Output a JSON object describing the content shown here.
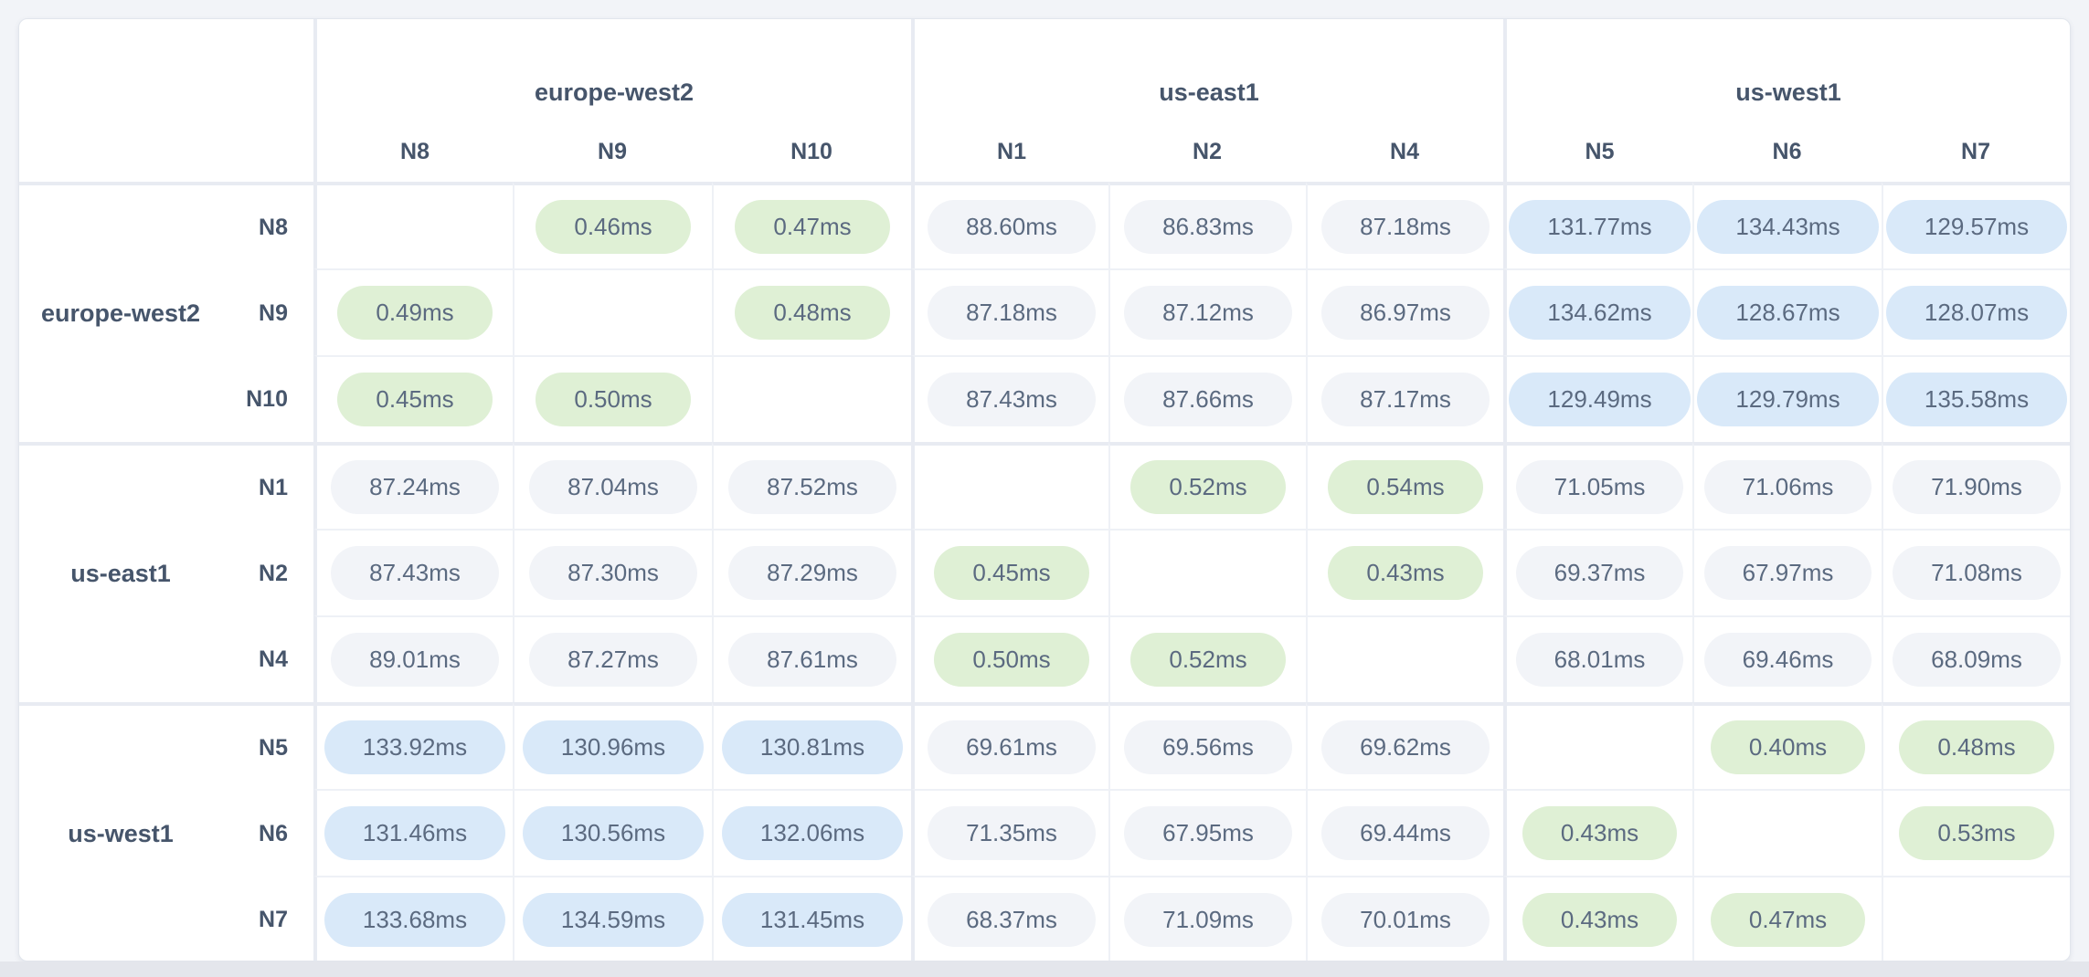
{
  "colors": {
    "page_bg": "#f2f4f8",
    "strip_bg": "#e4e6ec",
    "card_bg": "#ffffff",
    "card_border": "#e2e6ed",
    "group_separator": "#e8ebf2",
    "inner_gridline": "#eef1f6",
    "label_text": "#46556b",
    "value_text": "#5b6a80",
    "pill_low_bg": "#dff0d5",
    "pill_mid_bg": "#f2f4f8",
    "pill_high_bg": "#d9e9f9"
  },
  "chart_data": {
    "type": "heatmap",
    "title": "",
    "unit": "ms",
    "value_format_decimals": 2,
    "column_groups": [
      {
        "region": "europe-west2",
        "nodes": [
          "N8",
          "N9",
          "N10"
        ]
      },
      {
        "region": "us-east1",
        "nodes": [
          "N1",
          "N2",
          "N4"
        ]
      },
      {
        "region": "us-west1",
        "nodes": [
          "N5",
          "N6",
          "N7"
        ]
      }
    ],
    "row_groups": [
      {
        "region": "europe-west2",
        "nodes": [
          "N8",
          "N9",
          "N10"
        ]
      },
      {
        "region": "us-east1",
        "nodes": [
          "N1",
          "N2",
          "N4"
        ]
      },
      {
        "region": "us-west1",
        "nodes": [
          "N5",
          "N6",
          "N7"
        ]
      }
    ],
    "rows": [
      "N8",
      "N9",
      "N10",
      "N1",
      "N2",
      "N4",
      "N5",
      "N6",
      "N7"
    ],
    "columns": [
      "N8",
      "N9",
      "N10",
      "N1",
      "N2",
      "N4",
      "N5",
      "N6",
      "N7"
    ],
    "values_ms": [
      [
        null,
        0.46,
        0.47,
        88.6,
        86.83,
        87.18,
        131.77,
        134.43,
        129.57
      ],
      [
        0.49,
        null,
        0.48,
        87.18,
        87.12,
        86.97,
        134.62,
        128.67,
        128.07
      ],
      [
        0.45,
        0.5,
        null,
        87.43,
        87.66,
        87.17,
        129.49,
        129.79,
        135.58
      ],
      [
        87.24,
        87.04,
        87.52,
        null,
        0.52,
        0.54,
        71.05,
        71.06,
        71.9
      ],
      [
        87.43,
        87.3,
        87.29,
        0.45,
        null,
        0.43,
        69.37,
        67.97,
        71.08
      ],
      [
        89.01,
        87.27,
        87.61,
        0.5,
        0.52,
        null,
        68.01,
        69.46,
        68.09
      ],
      [
        133.92,
        130.96,
        130.81,
        69.61,
        69.56,
        69.62,
        null,
        0.4,
        0.48
      ],
      [
        131.46,
        130.56,
        132.06,
        71.35,
        67.95,
        69.44,
        0.43,
        null,
        0.53
      ],
      [
        133.68,
        134.59,
        131.45,
        68.37,
        71.09,
        70.01,
        0.43,
        0.47,
        null
      ]
    ],
    "color_coding": {
      "low": "same-region latency under 1ms (green pill)",
      "mid": "cross-region latency ~67-90ms (gray pill)",
      "high": "cross-region latency ~128-136ms (blue pill)"
    }
  }
}
